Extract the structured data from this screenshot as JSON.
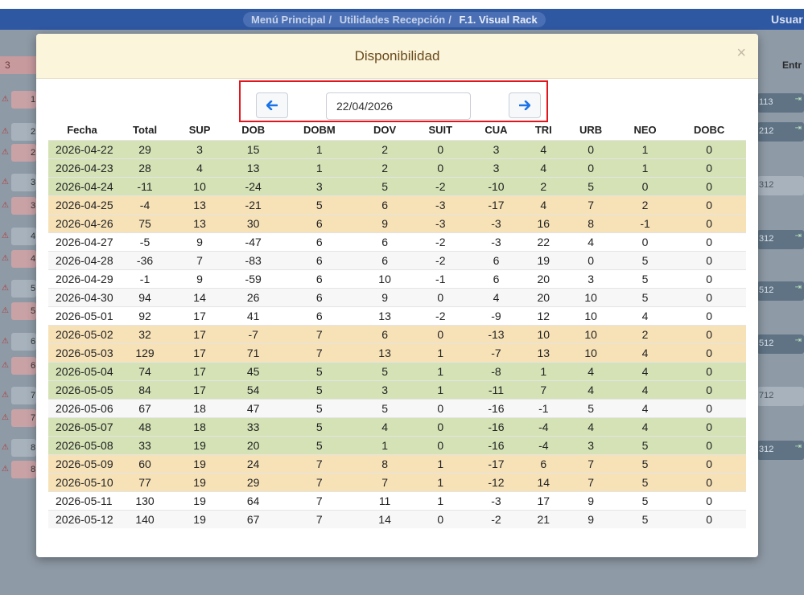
{
  "breadcrumb": {
    "item1": "Menú Principal",
    "item2": "Utilidades Recepción",
    "current": "F.1. Visual Rack",
    "separator": "/"
  },
  "header_user": "Usuar",
  "background": {
    "left_badge": "3",
    "entr_label": "Entr",
    "left_numbers": [
      "1",
      "2",
      "2",
      "3",
      "3",
      "4",
      "4",
      "5",
      "5",
      "6",
      "6",
      "7",
      "7",
      "8",
      "8"
    ],
    "right_chips": [
      "113",
      "212",
      "312",
      "312",
      "512",
      "512",
      "712",
      "312"
    ]
  },
  "modal": {
    "title": "Disponibilidad",
    "close_label": "×",
    "date_value": "22/04/2026",
    "columns": [
      "Fecha",
      "Total",
      "SUP",
      "DOB",
      "DOBM",
      "DOV",
      "SUIT",
      "CUA",
      "TRI",
      "URB",
      "NEO",
      "DOBC"
    ],
    "rows": [
      {
        "cells": [
          "2026-04-22",
          "29",
          "3",
          "15",
          "1",
          "2",
          "0",
          "3",
          "4",
          "0",
          "1",
          "0"
        ],
        "style": "g"
      },
      {
        "cells": [
          "2026-04-23",
          "28",
          "4",
          "13",
          "1",
          "2",
          "0",
          "3",
          "4",
          "0",
          "1",
          "0"
        ],
        "style": "g"
      },
      {
        "cells": [
          "2026-04-24",
          "-11",
          "10",
          "-24",
          "3",
          "5",
          "-2",
          "-10",
          "2",
          "5",
          "0",
          "0"
        ],
        "style": "g"
      },
      {
        "cells": [
          "2026-04-25",
          "-4",
          "13",
          "-21",
          "5",
          "6",
          "-3",
          "-17",
          "4",
          "7",
          "2",
          "0"
        ],
        "style": "y"
      },
      {
        "cells": [
          "2026-04-26",
          "75",
          "13",
          "30",
          "6",
          "9",
          "-3",
          "-3",
          "16",
          "8",
          "-1",
          "0"
        ],
        "style": "y"
      },
      {
        "cells": [
          "2026-04-27",
          "-5",
          "9",
          "-47",
          "6",
          "6",
          "-2",
          "-3",
          "22",
          "4",
          "0",
          "0"
        ],
        "style": "w"
      },
      {
        "cells": [
          "2026-04-28",
          "-36",
          "7",
          "-83",
          "6",
          "6",
          "-2",
          "6",
          "19",
          "0",
          "5",
          "0"
        ],
        "style": "s"
      },
      {
        "cells": [
          "2026-04-29",
          "-1",
          "9",
          "-59",
          "6",
          "10",
          "-1",
          "6",
          "20",
          "3",
          "5",
          "0"
        ],
        "style": "w"
      },
      {
        "cells": [
          "2026-04-30",
          "94",
          "14",
          "26",
          "6",
          "9",
          "0",
          "4",
          "20",
          "10",
          "5",
          "0"
        ],
        "style": "s"
      },
      {
        "cells": [
          "2026-05-01",
          "92",
          "17",
          "41",
          "6",
          "13",
          "-2",
          "-9",
          "12",
          "10",
          "4",
          "0"
        ],
        "style": "w"
      },
      {
        "cells": [
          "2026-05-02",
          "32",
          "17",
          "-7",
          "7",
          "6",
          "0",
          "-13",
          "10",
          "10",
          "2",
          "0"
        ],
        "style": "y"
      },
      {
        "cells": [
          "2026-05-03",
          "129",
          "17",
          "71",
          "7",
          "13",
          "1",
          "-7",
          "13",
          "10",
          "4",
          "0"
        ],
        "style": "y"
      },
      {
        "cells": [
          "2026-05-04",
          "74",
          "17",
          "45",
          "5",
          "5",
          "1",
          "-8",
          "1",
          "4",
          "4",
          "0"
        ],
        "style": "g"
      },
      {
        "cells": [
          "2026-05-05",
          "84",
          "17",
          "54",
          "5",
          "3",
          "1",
          "-11",
          "7",
          "4",
          "4",
          "0"
        ],
        "style": "g"
      },
      {
        "cells": [
          "2026-05-06",
          "67",
          "18",
          "47",
          "5",
          "5",
          "0",
          "-16",
          "-1",
          "5",
          "4",
          "0"
        ],
        "style": "s"
      },
      {
        "cells": [
          "2026-05-07",
          "48",
          "18",
          "33",
          "5",
          "4",
          "0",
          "-16",
          "-4",
          "4",
          "4",
          "0"
        ],
        "style": "g"
      },
      {
        "cells": [
          "2026-05-08",
          "33",
          "19",
          "20",
          "5",
          "1",
          "0",
          "-16",
          "-4",
          "3",
          "5",
          "0"
        ],
        "style": "g"
      },
      {
        "cells": [
          "2026-05-09",
          "60",
          "19",
          "24",
          "7",
          "8",
          "1",
          "-17",
          "6",
          "7",
          "5",
          "0"
        ],
        "style": "y"
      },
      {
        "cells": [
          "2026-05-10",
          "77",
          "19",
          "29",
          "7",
          "7",
          "1",
          "-12",
          "14",
          "7",
          "5",
          "0"
        ],
        "style": "y"
      },
      {
        "cells": [
          "2026-05-11",
          "130",
          "19",
          "64",
          "7",
          "11",
          "1",
          "-3",
          "17",
          "9",
          "5",
          "0"
        ],
        "style": "w"
      },
      {
        "cells": [
          "2026-05-12",
          "140",
          "19",
          "67",
          "7",
          "14",
          "0",
          "-2",
          "21",
          "9",
          "5",
          "0"
        ],
        "style": "s"
      }
    ]
  },
  "colors": {
    "topbar": "#2f58a2",
    "modal_header": "#fbf5dc",
    "row_green": "#d4e2b6",
    "row_yellow": "#f7e2b8",
    "highlight_border": "#e2151c",
    "arrow_blue": "#1a73e8"
  },
  "icons": {
    "prev": "arrow-left-icon",
    "next": "arrow-right-icon",
    "close": "close-icon",
    "warning": "warning-icon"
  }
}
